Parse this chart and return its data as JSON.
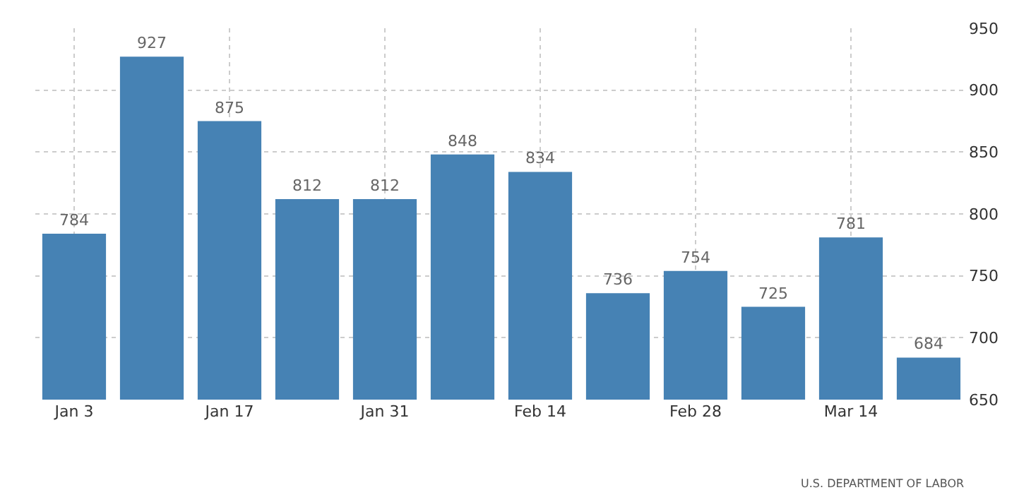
{
  "chart_data": {
    "type": "bar",
    "categories": [
      "Jan 3",
      null,
      "Jan 17",
      null,
      "Jan 31",
      null,
      "Feb 14",
      null,
      "Feb 28",
      null,
      "Mar 14",
      null
    ],
    "values": [
      784,
      927,
      875,
      812,
      812,
      848,
      834,
      736,
      754,
      725,
      781,
      684
    ],
    "color": "#4682b4",
    "ylim": [
      650,
      950
    ],
    "yticks": [
      650,
      700,
      750,
      800,
      850,
      900,
      950
    ],
    "grid": true,
    "data_labels": true,
    "annotations": [
      "U.S. DEPARTMENT OF LABOR"
    ]
  }
}
